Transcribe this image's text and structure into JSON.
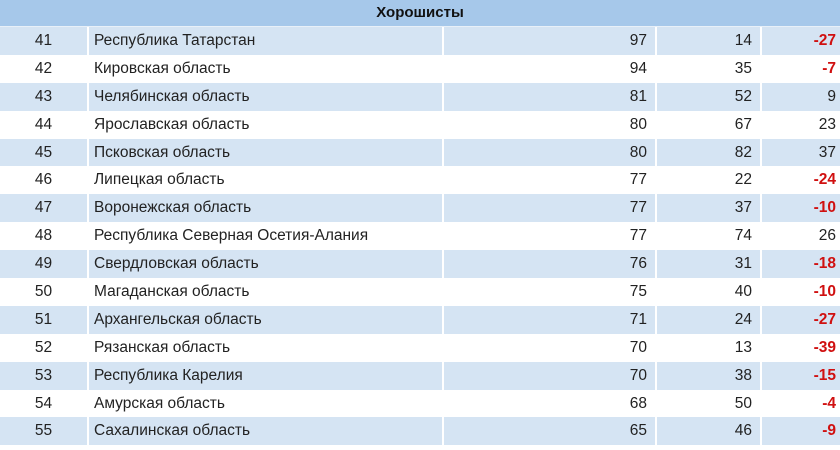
{
  "section_title": "Хорошисты",
  "colors": {
    "header": "#a6c8ea",
    "stripe": "#d5e4f3",
    "negative": "#d01010"
  },
  "rows": [
    {
      "rank": "41",
      "region": "Республика Татарстан",
      "col1": "97",
      "col2": "14",
      "delta": "-27"
    },
    {
      "rank": "42",
      "region": "Кировская область",
      "col1": "94",
      "col2": "35",
      "delta": "-7"
    },
    {
      "rank": "43",
      "region": "Челябинская область",
      "col1": "81",
      "col2": "52",
      "delta": "9"
    },
    {
      "rank": "44",
      "region": "Ярославская область",
      "col1": "80",
      "col2": "67",
      "delta": "23"
    },
    {
      "rank": "45",
      "region": "Псковская область",
      "col1": "80",
      "col2": "82",
      "delta": "37"
    },
    {
      "rank": "46",
      "region": "Липецкая область",
      "col1": "77",
      "col2": "22",
      "delta": "-24"
    },
    {
      "rank": "47",
      "region": "Воронежская область",
      "col1": "77",
      "col2": "37",
      "delta": "-10"
    },
    {
      "rank": "48",
      "region": "Республика Северная Осетия-Алания",
      "col1": "77",
      "col2": "74",
      "delta": "26"
    },
    {
      "rank": "49",
      "region": "Свердловская область",
      "col1": "76",
      "col2": "31",
      "delta": "-18"
    },
    {
      "rank": "50",
      "region": "Магаданская область",
      "col1": "75",
      "col2": "40",
      "delta": "-10"
    },
    {
      "rank": "51",
      "region": "Архангельская область",
      "col1": "71",
      "col2": "24",
      "delta": "-27"
    },
    {
      "rank": "52",
      "region": "Рязанская область",
      "col1": "70",
      "col2": "13",
      "delta": "-39"
    },
    {
      "rank": "53",
      "region": "Республика Карелия",
      "col1": "70",
      "col2": "38",
      "delta": "-15"
    },
    {
      "rank": "54",
      "region": "Амурская область",
      "col1": "68",
      "col2": "50",
      "delta": "-4"
    },
    {
      "rank": "55",
      "region": "Сахалинская область",
      "col1": "65",
      "col2": "46",
      "delta": "-9"
    }
  ]
}
